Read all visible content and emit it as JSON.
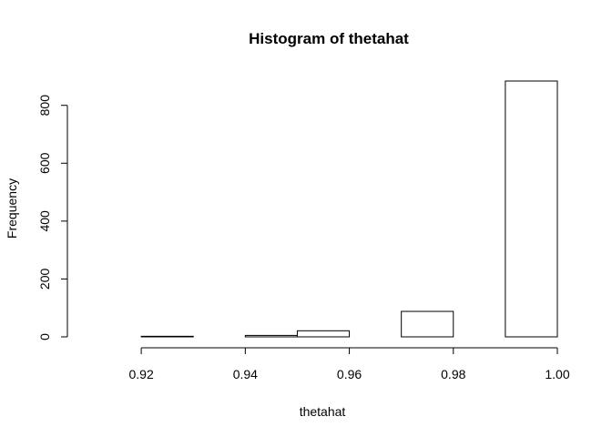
{
  "chart_data": {
    "type": "bar",
    "title": "Histogram of thetahat",
    "xlabel": "thetahat",
    "ylabel": "Frequency",
    "bins": [
      {
        "from": 0.91,
        "to": 0.92,
        "count": 0
      },
      {
        "from": 0.92,
        "to": 0.93,
        "count": 2
      },
      {
        "from": 0.93,
        "to": 0.94,
        "count": 0
      },
      {
        "from": 0.94,
        "to": 0.95,
        "count": 5
      },
      {
        "from": 0.95,
        "to": 0.96,
        "count": 21
      },
      {
        "from": 0.96,
        "to": 0.97,
        "count": 0
      },
      {
        "from": 0.97,
        "to": 0.98,
        "count": 88
      },
      {
        "from": 0.98,
        "to": 0.99,
        "count": 0
      },
      {
        "from": 0.99,
        "to": 1.0,
        "count": 884
      }
    ],
    "xlim": [
      0.91,
      1.0
    ],
    "ylim": [
      0,
      884
    ],
    "x_ticks": [
      "0.92",
      "0.94",
      "0.96",
      "0.98",
      "1.00"
    ],
    "x_tick_values": [
      0.92,
      0.94,
      0.96,
      0.98,
      1.0
    ],
    "y_ticks": [
      "0",
      "200",
      "400",
      "600",
      "800"
    ],
    "y_tick_values": [
      0,
      200,
      400,
      600,
      800
    ],
    "bar_fill": "#ffffff",
    "bar_stroke": "#000000",
    "grid": false,
    "legend": "none"
  }
}
